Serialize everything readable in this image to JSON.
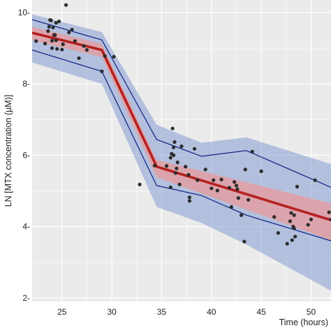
{
  "chart_data": {
    "type": "scatter",
    "title": "",
    "xlabel": "Time (hours)",
    "ylabel": "LN [MTX concentration (µM)]",
    "xlim": [
      22,
      52
    ],
    "ylim": [
      1.9,
      10.35
    ],
    "x_ticks": [
      25,
      30,
      35,
      40,
      45,
      50
    ],
    "y_ticks": [
      2,
      4,
      6,
      8,
      10
    ],
    "x_tick_labels": [
      "25",
      "30",
      "35",
      "40",
      "45",
      "50"
    ],
    "y_tick_labels": [
      "2-",
      "4-",
      "6-",
      "8-",
      "10-"
    ],
    "grid": true,
    "background_color": "#ebebeb",
    "grid_color": "#ffffff",
    "points_color": "#2b2b2b",
    "observed": {
      "x": [
        22.4,
        23.3,
        23.6,
        23.7,
        23.8,
        23.9,
        24.0,
        24.0,
        24.1,
        24.2,
        24.3,
        24.4,
        24.4,
        24.5,
        24.7,
        25.0,
        25.1,
        25.4,
        25.7,
        26.0,
        26.3,
        26.7,
        27.2,
        27.5,
        29.0,
        29.3,
        30.2,
        32.8,
        34.3,
        35.5,
        35.9,
        35.9,
        36.0,
        36.1,
        36.2,
        36.2,
        36.3,
        36.4,
        36.5,
        36.6,
        36.8,
        37.0,
        37.4,
        37.7,
        37.8,
        37.8,
        38.3,
        38.6,
        39.4,
        40.0,
        40.2,
        40.6,
        41.0,
        41.8,
        42.0,
        42.3,
        42.5,
        42.6,
        42.7,
        43.0,
        43.3,
        43.4,
        43.7,
        44.1,
        45.0,
        46.3,
        46.7,
        47.6,
        47.9,
        48.0,
        48.1,
        48.2,
        48.3,
        48.3,
        48.4,
        48.6,
        49.7,
        50.0,
        50.4,
        51.8,
        52.0
      ],
      "y": [
        9.2,
        9.13,
        9.48,
        9.6,
        9.79,
        9.78,
        9.21,
        9.0,
        9.58,
        9.37,
        9.37,
        9.71,
        9.22,
        8.98,
        9.75,
        8.96,
        9.11,
        10.21,
        9.44,
        9.52,
        9.2,
        8.72,
        9.06,
        8.95,
        8.35,
        8.78,
        8.76,
        5.18,
        5.71,
        5.7,
        5.1,
        5.93,
        6.04,
        6.75,
        6.0,
        6.22,
        6.37,
        5.5,
        5.63,
        5.8,
        5.18,
        6.25,
        5.68,
        5.45,
        4.72,
        4.82,
        6.18,
        5.3,
        5.6,
        5.07,
        5.3,
        5.01,
        5.32,
        5.09,
        4.55,
        5.25,
        5.15,
        5.05,
        4.8,
        4.32,
        3.58,
        5.6,
        4.75,
        6.1,
        5.55,
        4.27,
        3.82,
        3.52,
        4.15,
        4.38,
        3.62,
        4.0,
        4.32,
        3.95,
        3.72,
        5.12,
        4.05,
        4.2,
        5.3,
        4.4,
        4.2
      ]
    },
    "series": [
      {
        "x": [
          22,
          29,
          34.5,
          52
        ],
        "y": [
          9.43,
          8.95,
          5.68,
          4.18
        ],
        "color": "#b52020",
        "band": {
          "lower": [
            9.22,
            8.75,
            5.38,
            3.62
          ],
          "upper": [
            9.6,
            9.12,
            5.87,
            4.65
          ],
          "color": "#e89a9a"
        }
      },
      {
        "x": [
          22,
          29,
          34.5,
          39,
          43.5,
          52
        ],
        "y": [
          9.8,
          9.23,
          6.44,
          5.97,
          6.13,
          5.1
        ],
        "color": "#1a2a8c"
      },
      {
        "x": [
          22,
          29,
          34.5,
          39,
          43.5,
          52
        ],
        "y": [
          8.95,
          8.35,
          5.15,
          4.87,
          4.32,
          3.6
        ],
        "color": "#1a2a8c"
      }
    ],
    "prediction_band": {
      "x": [
        22,
        29,
        34.5,
        39,
        43.5,
        52
      ],
      "upper": [
        9.95,
        9.45,
        6.85,
        6.35,
        6.5,
        5.75
      ],
      "lower": [
        8.6,
        8.0,
        4.55,
        4.1,
        3.5,
        2.2
      ],
      "color": "#7a95cf"
    }
  }
}
